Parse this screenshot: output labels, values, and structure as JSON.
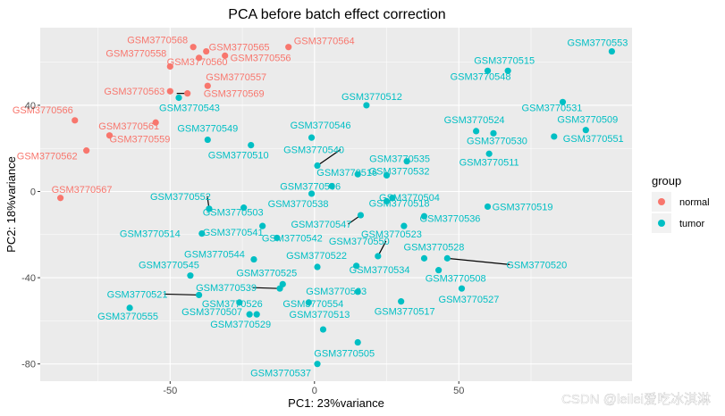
{
  "chart_data": {
    "type": "scatter",
    "title": "PCA before batch effect correction",
    "xlabel": "PC1: 23%variance",
    "ylabel": "PC2: 18%variance",
    "xlim": [
      -95,
      110
    ],
    "ylim": [
      -88,
      76
    ],
    "xticks": [
      -50,
      0,
      50
    ],
    "xtick_labels": [
      "-50",
      "0",
      "50"
    ],
    "yticks": [
      -80,
      -40,
      0,
      40
    ],
    "ytick_labels": [
      "-80",
      "-40",
      "0",
      "40"
    ],
    "grid": true,
    "legend": {
      "title": "group",
      "position": "right",
      "entries": [
        {
          "label": "normal",
          "color": "#F8766D"
        },
        {
          "label": "tumor",
          "color": "#00BFC4"
        }
      ]
    },
    "series": [
      {
        "name": "normal",
        "color": "#F8766D",
        "points": [
          {
            "label": "GSM3770568",
            "x": -42,
            "y": 67
          },
          {
            "label": "GSM3770565",
            "x": -37.5,
            "y": 65
          },
          {
            "label": "GSM3770564",
            "x": -9,
            "y": 67
          },
          {
            "label": "GSM3770560",
            "x": -40,
            "y": 62
          },
          {
            "label": "GSM3770556",
            "x": -31,
            "y": 63
          },
          {
            "label": "GSM3770558",
            "x": -50,
            "y": 58
          },
          {
            "label": "GSM3770557",
            "x": -37,
            "y": 49
          },
          {
            "label": "GSM3770563",
            "x": -50,
            "y": 46.5
          },
          {
            "label": "GSM3770569",
            "x": -44,
            "y": 45.5
          },
          {
            "label": "GSM3770566",
            "x": -83,
            "y": 33
          },
          {
            "label": "GSM3770561",
            "x": -55,
            "y": 32
          },
          {
            "label": "GSM3770559",
            "x": -71,
            "y": 26
          },
          {
            "label": "GSM3770562",
            "x": -79,
            "y": 19
          },
          {
            "label": "GSM3770567",
            "x": -88,
            "y": -3
          }
        ]
      },
      {
        "name": "tumor",
        "color": "#00BFC4",
        "points": [
          {
            "label": "GSM3770553",
            "x": 103,
            "y": 65
          },
          {
            "label": "GSM3770515",
            "x": 67,
            "y": 56
          },
          {
            "label": "GSM3770548",
            "x": 60,
            "y": 56
          },
          {
            "label": "GSM3770512",
            "x": 18,
            "y": 40
          },
          {
            "label": "GSM3770543",
            "x": -47,
            "y": 43.5
          },
          {
            "label": "GSM3770531",
            "x": 86,
            "y": 41.5
          },
          {
            "label": "GSM3770509",
            "x": 94,
            "y": 28.5
          },
          {
            "label": "GSM3770524",
            "x": 56,
            "y": 28
          },
          {
            "label": "GSM3770546",
            "x": -1,
            "y": 25
          },
          {
            "label": "GSM3770549",
            "x": -37,
            "y": 24
          },
          {
            "label": "GSM3770510",
            "x": -22,
            "y": 21.5
          },
          {
            "label": "GSM3770530",
            "x": 62,
            "y": 27
          },
          {
            "label": "GSM3770551",
            "x": 83,
            "y": 25.5
          },
          {
            "label": "GSM3770511",
            "x": 60.5,
            "y": 17.5
          },
          {
            "label": "GSM3770540",
            "x": 1,
            "y": 12
          },
          {
            "label": "GSM3770535",
            "x": 32,
            "y": 14
          },
          {
            "label": "GSM3770516",
            "x": 15,
            "y": 8
          },
          {
            "label": "GSM3770532",
            "x": 25,
            "y": 7.5
          },
          {
            "label": "GSM3770506",
            "x": 6,
            "y": 2.5
          },
          {
            "label": "GSM3770504",
            "x": 27,
            "y": -3
          },
          {
            "label": "GSM3770538",
            "x": -1,
            "y": -1
          },
          {
            "label": "GSM3770519",
            "x": 60,
            "y": -7
          },
          {
            "label": "GSM3770552",
            "x": -36.5,
            "y": -8
          },
          {
            "label": "GSM3770503",
            "x": -24.5,
            "y": -7.5
          },
          {
            "label": "GSM3770518",
            "x": 25,
            "y": -4.5
          },
          {
            "label": "GSM3770536",
            "x": 38,
            "y": -11.5
          },
          {
            "label": "GSM3770541",
            "x": -18,
            "y": -16
          },
          {
            "label": "GSM3770547",
            "x": 16,
            "y": -11
          },
          {
            "label": "GSM3770514",
            "x": -39,
            "y": -19.5
          },
          {
            "label": "GSM3770542",
            "x": -13,
            "y": -21.5
          },
          {
            "label": "GSM3770523",
            "x": 31,
            "y": -16
          },
          {
            "label": "GSM3770550",
            "x": 22,
            "y": -30
          },
          {
            "label": "GSM3770544",
            "x": -21,
            "y": -31.5
          },
          {
            "label": "GSM3770522",
            "x": 1,
            "y": -35
          },
          {
            "label": "GSM3770528",
            "x": 38,
            "y": -31
          },
          {
            "label": "GSM3770520",
            "x": 46,
            "y": -31
          },
          {
            "label": "GSM3770534",
            "x": 14.5,
            "y": -34.5
          },
          {
            "label": "GSM3770545",
            "x": -43,
            "y": -39
          },
          {
            "label": "GSM3770508",
            "x": 43,
            "y": -36.5
          },
          {
            "label": "GSM3770525",
            "x": -11,
            "y": -43
          },
          {
            "label": "GSM3770539",
            "x": -12,
            "y": -45
          },
          {
            "label": "GSM3770533",
            "x": 15,
            "y": -46.5
          },
          {
            "label": "GSM3770527",
            "x": 51,
            "y": -45
          },
          {
            "label": "GSM3770521",
            "x": -40,
            "y": -48
          },
          {
            "label": "GSM3770517",
            "x": 30,
            "y": -51
          },
          {
            "label": "GSM3770526",
            "x": -26,
            "y": -51.5
          },
          {
            "label": "GSM3770554",
            "x": -2,
            "y": -51.5
          },
          {
            "label": "GSM3770555",
            "x": -64,
            "y": -54
          },
          {
            "label": "GSM3770507",
            "x": -22.5,
            "y": -57
          },
          {
            "label": "GSM3770529",
            "x": -20,
            "y": -57
          },
          {
            "label": "GSM3770513",
            "x": 3,
            "y": -64
          },
          {
            "label": "GSM3770505",
            "x": 15,
            "y": -70
          },
          {
            "label": "GSM3770537",
            "x": 1,
            "y": -80
          }
        ]
      }
    ]
  },
  "watermark": "CSDN @leilei爱吃冰淇淋"
}
